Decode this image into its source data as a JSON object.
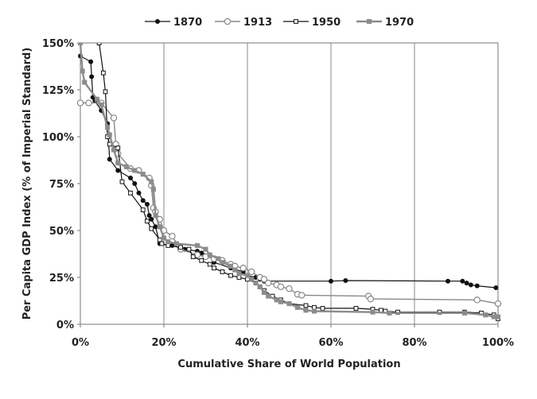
{
  "chart_data": {
    "type": "line",
    "title": "",
    "xlabel": "Cumulative Share of World Population",
    "ylabel": "Per Capita GDP Index (% of Imperial Standard)",
    "xlim": [
      0,
      100
    ],
    "ylim": [
      0,
      150
    ],
    "x_ticks": [
      0,
      20,
      40,
      60,
      80,
      100
    ],
    "y_ticks": [
      0,
      25,
      50,
      75,
      100,
      125,
      150
    ],
    "x_tick_labels": [
      "0%",
      "20%",
      "40%",
      "60%",
      "80%",
      "100%"
    ],
    "y_tick_labels": [
      "0%",
      "25%",
      "50%",
      "75%",
      "100%",
      "125%",
      "150%"
    ],
    "grid": "vertical",
    "legend_position": "top",
    "series": [
      {
        "name": "1870",
        "marker": "filled-circle",
        "color": "#111111",
        "points": [
          [
            0,
            143
          ],
          [
            2.5,
            140
          ],
          [
            2.7,
            132
          ],
          [
            3,
            121
          ],
          [
            3.5,
            119
          ],
          [
            5,
            114
          ],
          [
            6.5,
            107
          ],
          [
            7,
            88
          ],
          [
            9,
            82
          ],
          [
            12,
            78
          ],
          [
            13,
            75
          ],
          [
            14,
            70
          ],
          [
            15,
            66
          ],
          [
            16,
            64
          ],
          [
            16.5,
            58
          ],
          [
            17,
            56
          ],
          [
            18,
            52
          ],
          [
            19,
            43
          ],
          [
            22,
            42
          ],
          [
            25,
            40
          ],
          [
            28,
            39
          ],
          [
            29,
            38
          ],
          [
            31,
            37
          ],
          [
            32,
            33
          ],
          [
            36,
            30
          ],
          [
            39,
            28
          ],
          [
            40,
            26
          ],
          [
            42,
            25
          ],
          [
            43,
            24
          ],
          [
            44,
            23
          ],
          [
            60,
            23
          ],
          [
            63.5,
            23.3
          ],
          [
            88,
            23
          ],
          [
            91.5,
            23
          ],
          [
            92.5,
            22
          ],
          [
            93.5,
            21
          ],
          [
            95,
            20.5
          ],
          [
            99.5,
            19.5
          ]
        ]
      },
      {
        "name": "1913",
        "marker": "open-circle",
        "color": "#888888",
        "points": [
          [
            0,
            118
          ],
          [
            2,
            118
          ],
          [
            5,
            118
          ],
          [
            8,
            110
          ],
          [
            8.5,
            96
          ],
          [
            9,
            91
          ],
          [
            12,
            83
          ],
          [
            14,
            82
          ],
          [
            16.5,
            78
          ],
          [
            17,
            74
          ],
          [
            17.5,
            62
          ],
          [
            18,
            60
          ],
          [
            19,
            56
          ],
          [
            20,
            50
          ],
          [
            22,
            47
          ],
          [
            24,
            40
          ],
          [
            28,
            37
          ],
          [
            30,
            36
          ],
          [
            32,
            35
          ],
          [
            34,
            34
          ],
          [
            36,
            32
          ],
          [
            37,
            31
          ],
          [
            39,
            30
          ],
          [
            41,
            28
          ],
          [
            43,
            25
          ],
          [
            44,
            24
          ],
          [
            45,
            22
          ],
          [
            47,
            21
          ],
          [
            48,
            20
          ],
          [
            50,
            19
          ],
          [
            52,
            16
          ],
          [
            53,
            15.5
          ],
          [
            69,
            15
          ],
          [
            69.5,
            13.5
          ],
          [
            95,
            13
          ],
          [
            100,
            11
          ]
        ]
      },
      {
        "name": "1950",
        "marker": "open-square",
        "color": "#111111",
        "points": [
          [
            4.5,
            150
          ],
          [
            5.5,
            134
          ],
          [
            6,
            124
          ],
          [
            6.5,
            100
          ],
          [
            7,
            96
          ],
          [
            9,
            94
          ],
          [
            10,
            76
          ],
          [
            12,
            70
          ],
          [
            15,
            61
          ],
          [
            16,
            55
          ],
          [
            17,
            51
          ],
          [
            19,
            45
          ],
          [
            19.5,
            43
          ],
          [
            21,
            42
          ],
          [
            24,
            41
          ],
          [
            26,
            40
          ],
          [
            27,
            36
          ],
          [
            29,
            34
          ],
          [
            31,
            32
          ],
          [
            32,
            30
          ],
          [
            34,
            28
          ],
          [
            36,
            26
          ],
          [
            38,
            25
          ],
          [
            40,
            24
          ],
          [
            42,
            22
          ],
          [
            43,
            20
          ],
          [
            44,
            18
          ],
          [
            46,
            15
          ],
          [
            48,
            13
          ],
          [
            50,
            11
          ],
          [
            54,
            10
          ],
          [
            56,
            9
          ],
          [
            58,
            8.5
          ],
          [
            66,
            8.5
          ],
          [
            70,
            8
          ],
          [
            72,
            7.5
          ],
          [
            73,
            7
          ],
          [
            76,
            6.5
          ],
          [
            86,
            6.5
          ],
          [
            92,
            6.5
          ],
          [
            96,
            6
          ],
          [
            99,
            5
          ],
          [
            100,
            3
          ]
        ]
      },
      {
        "name": "1970",
        "marker": "filled-square",
        "color": "#8c8c8c",
        "points": [
          [
            0,
            150
          ],
          [
            0.5,
            135
          ],
          [
            1,
            129
          ],
          [
            4,
            120
          ],
          [
            5,
            117
          ],
          [
            6.5,
            105
          ],
          [
            7,
            101
          ],
          [
            8,
            93
          ],
          [
            9,
            86
          ],
          [
            11,
            84
          ],
          [
            13,
            82
          ],
          [
            15,
            80
          ],
          [
            17,
            76
          ],
          [
            17.5,
            72
          ],
          [
            18,
            58
          ],
          [
            19,
            52
          ],
          [
            20,
            46
          ],
          [
            21,
            44
          ],
          [
            23,
            43
          ],
          [
            28,
            42
          ],
          [
            30,
            40
          ],
          [
            31,
            37
          ],
          [
            33,
            35
          ],
          [
            34,
            33
          ],
          [
            36,
            31
          ],
          [
            37,
            29
          ],
          [
            38,
            27
          ],
          [
            40,
            26
          ],
          [
            41,
            24
          ],
          [
            42,
            22
          ],
          [
            43,
            20
          ],
          [
            44,
            17
          ],
          [
            45,
            15
          ],
          [
            47,
            13
          ],
          [
            48,
            12
          ],
          [
            50,
            11
          ],
          [
            52,
            9
          ],
          [
            54,
            7.5
          ],
          [
            56,
            7
          ],
          [
            70,
            6.5
          ],
          [
            74,
            6
          ],
          [
            92,
            6
          ],
          [
            97,
            5
          ],
          [
            99,
            4
          ],
          [
            100,
            4
          ]
        ]
      }
    ]
  }
}
